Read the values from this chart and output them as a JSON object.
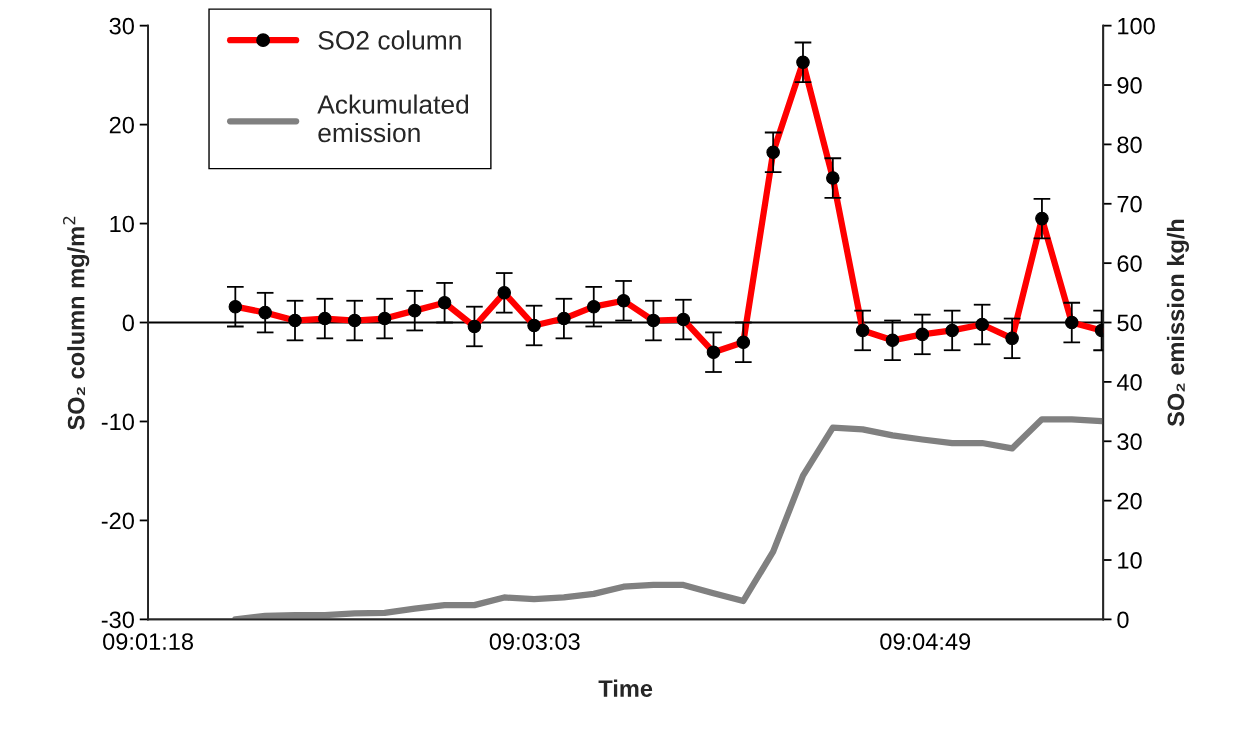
{
  "chart_data": {
    "type": "line",
    "xlabel": "Time",
    "ylabel": "SO₂ column mg/m$^{2}$",
    "y2label": "SO₂ emission kg/h",
    "x": [
      9.02825,
      9.0305,
      9.03275,
      9.035,
      9.03725,
      9.03951,
      9.04178,
      9.04403,
      9.04628,
      9.04853,
      9.05078,
      9.05303,
      9.05528,
      9.05753,
      9.05978,
      9.06204,
      9.06431,
      9.06656,
      9.06881,
      9.07106,
      9.07331,
      9.07556,
      9.07781,
      9.08006,
      9.08231,
      9.08457,
      9.08683,
      9.08908,
      9.09133,
      9.09358
    ],
    "series": [
      {
        "name": "SO2 column",
        "color": "#ff0000",
        "marker": "circle",
        "values": [
          1.6,
          1.0,
          0.2,
          0.4,
          0.2,
          0.4,
          1.2,
          2.0,
          -0.4,
          3.0,
          -0.3,
          0.4,
          1.6,
          2.2,
          0.2,
          0.3,
          -3.0,
          -2.0,
          17.2,
          26.3,
          14.6,
          -0.8,
          -1.8,
          -1.2,
          -0.8,
          -0.2,
          -1.6,
          10.5,
          0,
          -0.8
        ],
        "errors": [
          2,
          2,
          2,
          2,
          2,
          2,
          2,
          2,
          2,
          2,
          2,
          2,
          2,
          2,
          2,
          2,
          2,
          2,
          2,
          2,
          2,
          2,
          2,
          2,
          2,
          2,
          2,
          2,
          2,
          2
        ]
      },
      {
        "name": "Ackumulated\nemission",
        "color": "#808080",
        "axis": "y2",
        "marker": "none",
        "values": [
          0,
          0.6,
          0.7,
          0.7,
          1.0,
          1.1,
          1.8,
          2.4,
          2.4,
          3.7,
          3.4,
          3.7,
          4.3,
          5.5,
          5.8,
          5.8,
          4.4,
          3.1,
          11.4,
          24.2,
          32.3,
          32.0,
          31.0,
          30.3,
          29.7,
          29.7,
          28.8,
          33.7,
          33.7,
          33.4
        ]
      }
    ],
    "xlim": [
      9.02167,
      9.0937
    ],
    "xticks": [
      {
        "value": 9.02167,
        "label": "09:01:18"
      },
      {
        "value": 9.05083,
        "label": "09:03:03"
      },
      {
        "value": 9.08028,
        "label": "09:04:49"
      }
    ],
    "ylim": [
      -30,
      30
    ],
    "yticks": [
      -30,
      -20,
      -10,
      0,
      10,
      20,
      30
    ],
    "y2lim": [
      0,
      100
    ],
    "y2ticks": [
      0,
      10,
      20,
      30,
      40,
      50,
      60,
      70,
      80,
      90,
      100
    ],
    "ref_lines": [
      {
        "axis": "y",
        "value": 0,
        "color": "#000000"
      }
    ],
    "grid": false,
    "legend": "top left"
  }
}
